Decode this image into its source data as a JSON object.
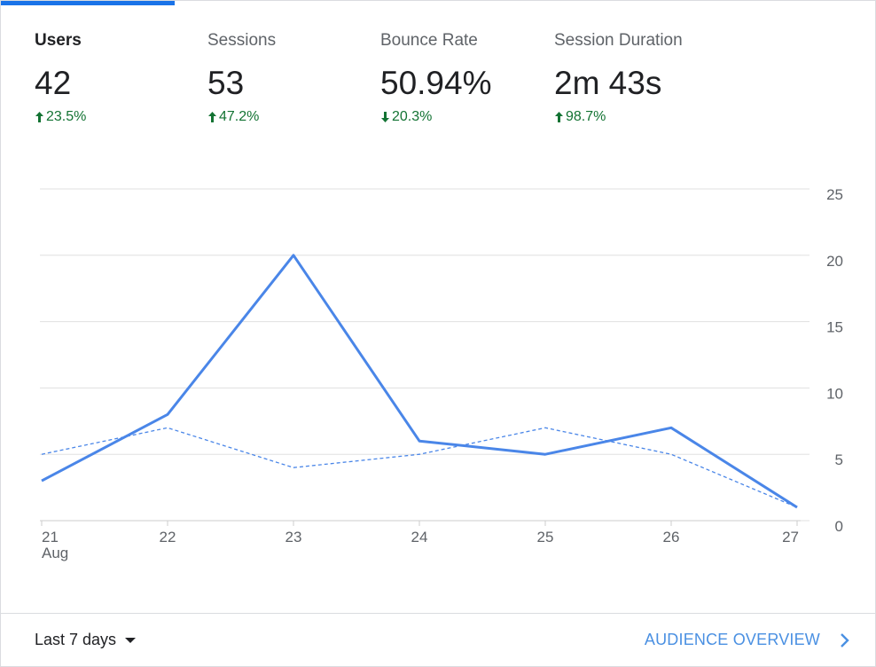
{
  "metrics": [
    {
      "label": "Users",
      "value": "42",
      "change": "23.5%",
      "direction": "up",
      "active": true
    },
    {
      "label": "Sessions",
      "value": "53",
      "change": "47.2%",
      "direction": "up",
      "active": false
    },
    {
      "label": "Bounce Rate",
      "value": "50.94%",
      "change": "20.3%",
      "direction": "down",
      "active": false
    },
    {
      "label": "Session Duration",
      "value": "2m 43s",
      "change": "98.7%",
      "direction": "up",
      "active": false
    }
  ],
  "colors": {
    "accent": "#1a73e8",
    "line": "#4a86e8",
    "positive": "#137333",
    "grid": "#e0e0e0",
    "link": "#4a90e2"
  },
  "chart_data": {
    "type": "line",
    "x": [
      "21",
      "22",
      "23",
      "24",
      "25",
      "26",
      "27"
    ],
    "x_sublabel": "Aug",
    "series": [
      {
        "values": [
          3,
          8,
          20,
          6,
          5,
          7,
          1
        ],
        "style": "solid"
      },
      {
        "values": [
          5,
          7,
          4,
          5,
          7,
          5,
          1
        ],
        "style": "dashed"
      }
    ],
    "yticks": [
      "0",
      "5",
      "10",
      "15",
      "20",
      "25"
    ],
    "ylim": [
      0,
      25
    ],
    "grid": true,
    "y_axis_position": "right"
  },
  "footer": {
    "date_range": "Last 7 days",
    "overview_link": "AUDIENCE OVERVIEW"
  }
}
